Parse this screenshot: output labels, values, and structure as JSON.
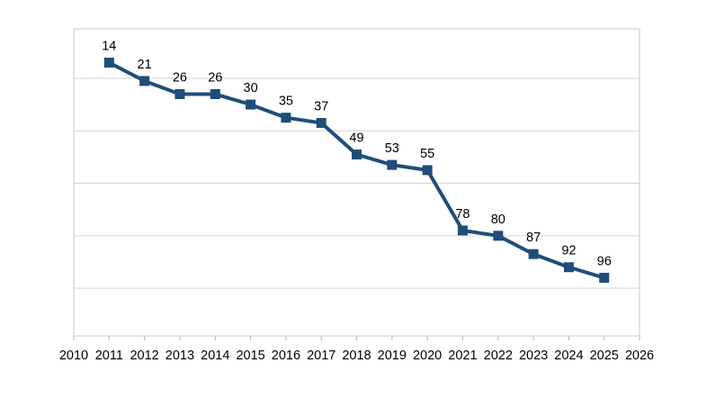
{
  "chart_data": {
    "type": "line",
    "title": "",
    "subtitle": "",
    "xlabel": "",
    "ylabel": "",
    "legend": "none",
    "grid": "horizontal",
    "series": [
      {
        "name": "series1",
        "x": [
          2011,
          2012,
          2013,
          2014,
          2015,
          2016,
          2017,
          2018,
          2019,
          2020,
          2021,
          2022,
          2023,
          2024,
          2025
        ],
        "values": [
          14,
          21,
          26,
          26,
          30,
          35,
          37,
          49,
          53,
          55,
          78,
          80,
          87,
          92,
          96
        ],
        "marker": "square",
        "data_labels_position": "above"
      }
    ],
    "x_axis": {
      "tick_labels": [
        "2010",
        "2011",
        "2012",
        "2013",
        "2014",
        "2015",
        "2016",
        "2017",
        "2018",
        "2019",
        "2020",
        "2021",
        "2022",
        "2023",
        "2024",
        "2025",
        "2026"
      ],
      "xlim": [
        2010,
        2026
      ]
    },
    "y_axis": {
      "tick_labels_visible": false,
      "reversed": true,
      "ylim": [
        0,
        120
      ],
      "gridline_step": 20
    },
    "colors": {
      "series": "#1f4e79",
      "gridline": "#d9d9d9",
      "plot_border": "#d3d3d3",
      "axis_tick": "#bfbfbf",
      "text": "#000000",
      "background": "#ffffff"
    }
  }
}
